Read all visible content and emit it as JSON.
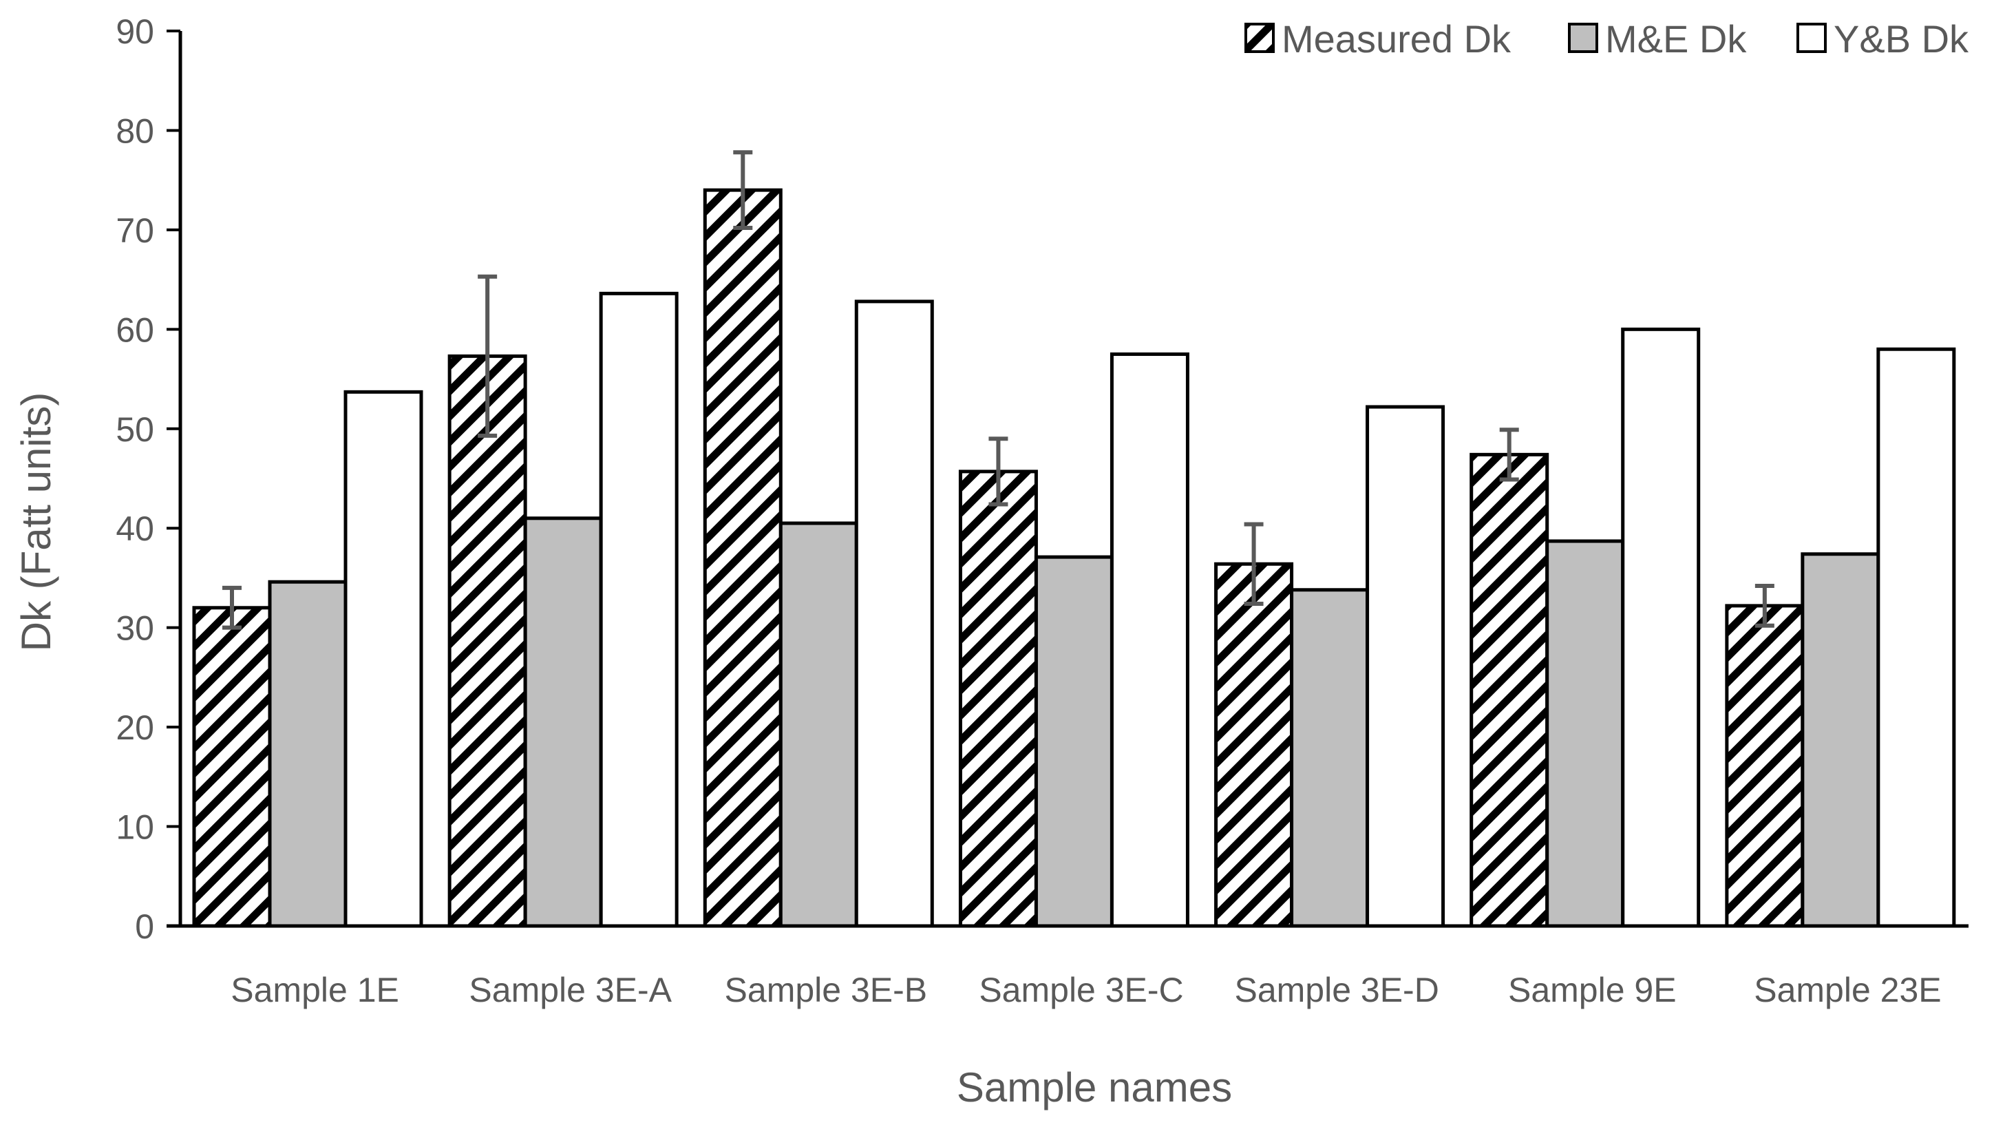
{
  "chart_data": {
    "type": "bar",
    "title": "",
    "xlabel": "Sample names",
    "ylabel": "Dk (Fatt units)",
    "ylim": [
      0,
      90
    ],
    "yticks": [
      0,
      10,
      20,
      30,
      40,
      50,
      60,
      70,
      80,
      90
    ],
    "grid": false,
    "legend_position": "top-right",
    "categories": [
      "Sample 1E",
      "Sample 3E-A",
      "Sample 3E-B",
      "Sample 3E-C",
      "Sample 3E-D",
      "Sample 9E",
      "Sample 23E"
    ],
    "series": [
      {
        "name": "Measured Dk",
        "fill": "hatched",
        "values": [
          32,
          57.3,
          74,
          45.7,
          36.4,
          47.4,
          32.2
        ],
        "error": [
          2,
          8,
          3.8,
          3.3,
          4,
          2.5,
          2
        ]
      },
      {
        "name": "M&E Dk",
        "fill": "#bfbfbf",
        "values": [
          34.6,
          41,
          40.5,
          37.1,
          33.8,
          38.7,
          37.4
        ]
      },
      {
        "name": "Y&B Dk",
        "fill": "#ffffff",
        "values": [
          53.7,
          63.6,
          62.8,
          57.5,
          52.2,
          60,
          58
        ]
      }
    ],
    "colors": {
      "bar_stroke": "#000000",
      "axis": "#000000",
      "error_bar": "#595959",
      "text": "#595959"
    }
  }
}
